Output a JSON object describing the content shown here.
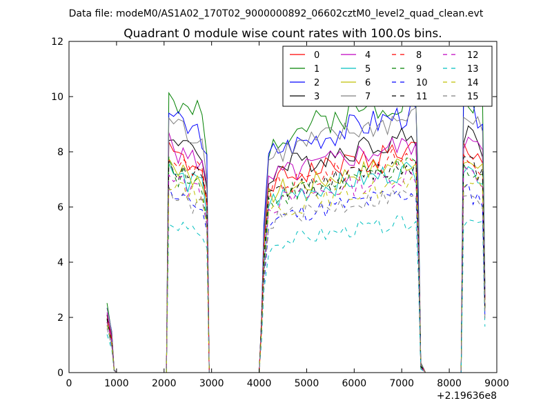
{
  "figure": {
    "suptitle": "Data file: modeM0/AS1A02_170T02_9000000892_06602cztM0_level2_quad_clean.evt"
  },
  "chart_data": {
    "type": "line",
    "title": "Quadrant 0 module wise count rates with 100.0s bins.",
    "xlabel": "",
    "ylabel": "",
    "x_offset_text": "+2.19636e8",
    "xlim": [
      0,
      9000
    ],
    "ylim": [
      0,
      12
    ],
    "x_ticks": [
      0,
      1000,
      2000,
      3000,
      4000,
      5000,
      6000,
      7000,
      8000,
      9000
    ],
    "y_ticks": [
      0,
      2,
      4,
      6,
      8,
      10,
      12
    ],
    "grid": false,
    "legend_position": "top-right",
    "legend_columns": 4,
    "series": [
      {
        "name": "0",
        "color": "#ff0000",
        "dash": "solid",
        "base_level": 8.6,
        "seed": 1
      },
      {
        "name": "1",
        "color": "#008000",
        "dash": "solid",
        "base_level": 10.6,
        "seed": 2
      },
      {
        "name": "2",
        "color": "#0000ff",
        "dash": "solid",
        "base_level": 10.0,
        "seed": 3
      },
      {
        "name": "3",
        "color": "#000000",
        "dash": "solid",
        "base_level": 9.1,
        "seed": 4
      },
      {
        "name": "4",
        "color": "#bf00bf",
        "dash": "solid",
        "base_level": 8.8,
        "seed": 5
      },
      {
        "name": "5",
        "color": "#00bfbf",
        "dash": "solid",
        "base_level": 7.8,
        "seed": 6
      },
      {
        "name": "6",
        "color": "#bfbf00",
        "dash": "solid",
        "base_level": 8.1,
        "seed": 7
      },
      {
        "name": "7",
        "color": "#7f7f7f",
        "dash": "solid",
        "base_level": 9.8,
        "seed": 8
      },
      {
        "name": "8",
        "color": "#ff0000",
        "dash": "dashed",
        "base_level": 8.3,
        "seed": 9
      },
      {
        "name": "9",
        "color": "#008000",
        "dash": "dashed",
        "base_level": 7.9,
        "seed": 10
      },
      {
        "name": "10",
        "color": "#0000ff",
        "dash": "dashed",
        "base_level": 6.9,
        "seed": 11
      },
      {
        "name": "11",
        "color": "#000000",
        "dash": "dashed",
        "base_level": 8.0,
        "seed": 12
      },
      {
        "name": "12",
        "color": "#bf00bf",
        "dash": "dashed",
        "base_level": 7.6,
        "seed": 13
      },
      {
        "name": "13",
        "color": "#00bfbf",
        "dash": "dashed",
        "base_level": 5.8,
        "seed": 14
      },
      {
        "name": "14",
        "color": "#bfbf00",
        "dash": "dashed",
        "base_level": 7.3,
        "seed": 15
      },
      {
        "name": "15",
        "color": "#7f7f7f",
        "dash": "dashed",
        "base_level": 6.9,
        "seed": 16
      }
    ],
    "profile": {
      "x": [
        800,
        900,
        950,
        1000,
        1500,
        2000,
        2050,
        2100,
        2200,
        2300,
        2400,
        2500,
        2600,
        2700,
        2800,
        2900,
        2950,
        3000,
        3500,
        4000,
        4050,
        4100,
        4200,
        4300,
        4400,
        4500,
        4600,
        4700,
        4800,
        4900,
        5000,
        5100,
        5200,
        5300,
        5400,
        5500,
        5600,
        5700,
        5800,
        5900,
        6000,
        6100,
        6200,
        6300,
        6400,
        6500,
        6600,
        6700,
        6800,
        6900,
        7000,
        7100,
        7200,
        7300,
        7350,
        7400,
        7500,
        8000,
        8200,
        8250,
        8300,
        8400,
        8500,
        8600,
        8700,
        8750
      ],
      "level": [
        0.24,
        0.14,
        0.01,
        0.0,
        0.0,
        0.0,
        0.0,
        0.95,
        0.93,
        0.9,
        0.9,
        0.88,
        0.88,
        0.88,
        0.86,
        0.75,
        0.0,
        0.0,
        0.0,
        0.0,
        0.2,
        0.5,
        0.78,
        0.8,
        0.81,
        0.82,
        0.82,
        0.83,
        0.83,
        0.84,
        0.84,
        0.85,
        0.85,
        0.86,
        0.86,
        0.87,
        0.87,
        0.88,
        0.88,
        0.89,
        0.89,
        0.9,
        0.9,
        0.9,
        0.91,
        0.91,
        0.92,
        0.92,
        0.93,
        0.93,
        0.93,
        0.94,
        0.94,
        0.94,
        0.6,
        0.03,
        0.0,
        0.0,
        0.0,
        0.0,
        0.95,
        0.95,
        0.93,
        0.92,
        0.9,
        0.3
      ],
      "noise": [
        0.01,
        0.01,
        0.0,
        0.0,
        0.0,
        0.0,
        0.0,
        0.04,
        0.05,
        0.05,
        0.05,
        0.05,
        0.05,
        0.05,
        0.05,
        0.05,
        0.0,
        0.0,
        0.0,
        0.0,
        0.02,
        0.05,
        0.05,
        0.05,
        0.05,
        0.05,
        0.05,
        0.05,
        0.05,
        0.05,
        0.05,
        0.05,
        0.05,
        0.05,
        0.05,
        0.05,
        0.05,
        0.05,
        0.05,
        0.05,
        0.05,
        0.05,
        0.05,
        0.05,
        0.05,
        0.05,
        0.05,
        0.05,
        0.05,
        0.05,
        0.05,
        0.05,
        0.05,
        0.05,
        0.04,
        0.01,
        0.0,
        0.0,
        0.0,
        0.0,
        0.04,
        0.05,
        0.05,
        0.05,
        0.05,
        0.03
      ]
    }
  }
}
